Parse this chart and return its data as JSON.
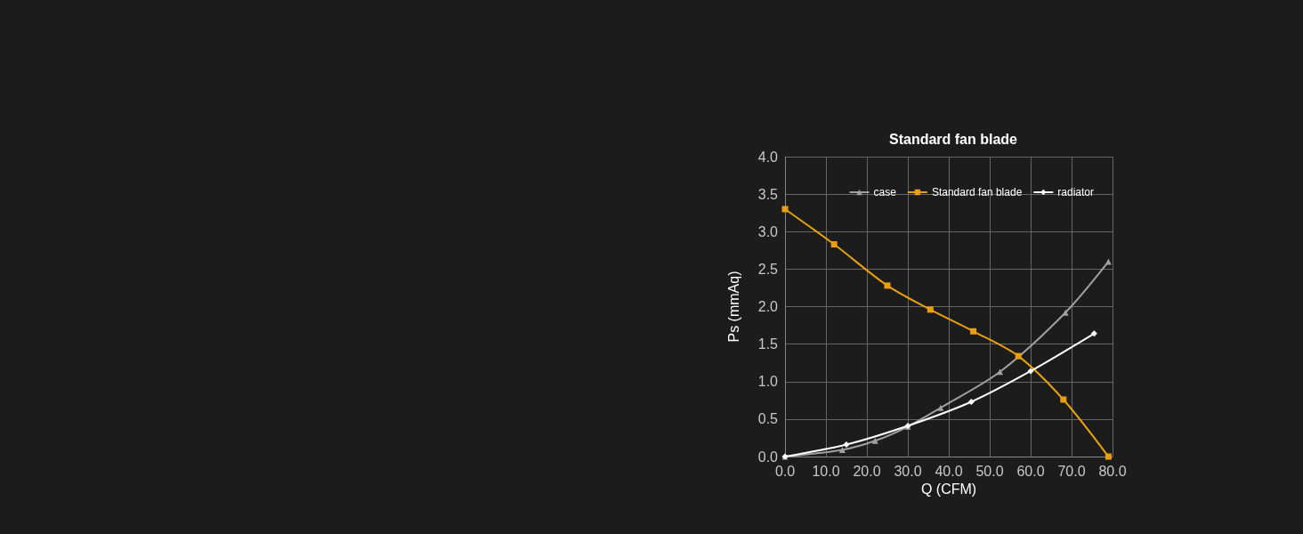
{
  "chart_data": {
    "type": "line",
    "title": "Standard fan blade",
    "xlabel": "Q (CFM)",
    "ylabel": "Ps (mmAq)",
    "xlim": [
      0,
      80
    ],
    "xticks": [
      {
        "value": 0,
        "label": "0.0"
      },
      {
        "value": 10,
        "label": "10.0"
      },
      {
        "value": 20,
        "label": "20.0"
      },
      {
        "value": 30,
        "label": "30.0"
      },
      {
        "value": 40,
        "label": "40.0"
      },
      {
        "value": 50,
        "label": "50.0"
      },
      {
        "value": 60,
        "label": "60.0"
      },
      {
        "value": 70,
        "label": "70.0"
      },
      {
        "value": 80,
        "label": "80.0"
      }
    ],
    "ylim": [
      0,
      4
    ],
    "yticks": [
      {
        "value": 0,
        "label": "0.0"
      },
      {
        "value": 0.5,
        "label": "0.5"
      },
      {
        "value": 1,
        "label": "1.0"
      },
      {
        "value": 1.5,
        "label": "1.5"
      },
      {
        "value": 2,
        "label": "2.0"
      },
      {
        "value": 2.5,
        "label": "2.5"
      },
      {
        "value": 3,
        "label": "3.0"
      },
      {
        "value": 3.5,
        "label": "3.5"
      },
      {
        "value": 4,
        "label": "4.0"
      }
    ],
    "grid": true,
    "legend": "top right",
    "series": [
      {
        "name": "case",
        "color": "#a0a0a0",
        "marker": "triangle",
        "x": [
          0,
          14,
          22,
          30,
          38,
          52.5,
          68.5,
          79
        ],
        "values": [
          0,
          0.09,
          0.21,
          0.4,
          0.65,
          1.13,
          1.92,
          2.6
        ]
      },
      {
        "name": "Standard fan blade",
        "color": "#e8a010",
        "marker": "square",
        "x": [
          0,
          12,
          25,
          35.5,
          46,
          57,
          68,
          79
        ],
        "values": [
          3.3,
          2.83,
          2.28,
          1.96,
          1.67,
          1.34,
          0.76,
          0
        ]
      },
      {
        "name": "radiator",
        "color": "#ffffff",
        "marker": "diamond",
        "x": [
          0,
          15,
          30,
          45.5,
          60,
          75.5
        ],
        "values": [
          0,
          0.16,
          0.41,
          0.73,
          1.14,
          1.64
        ]
      }
    ]
  }
}
